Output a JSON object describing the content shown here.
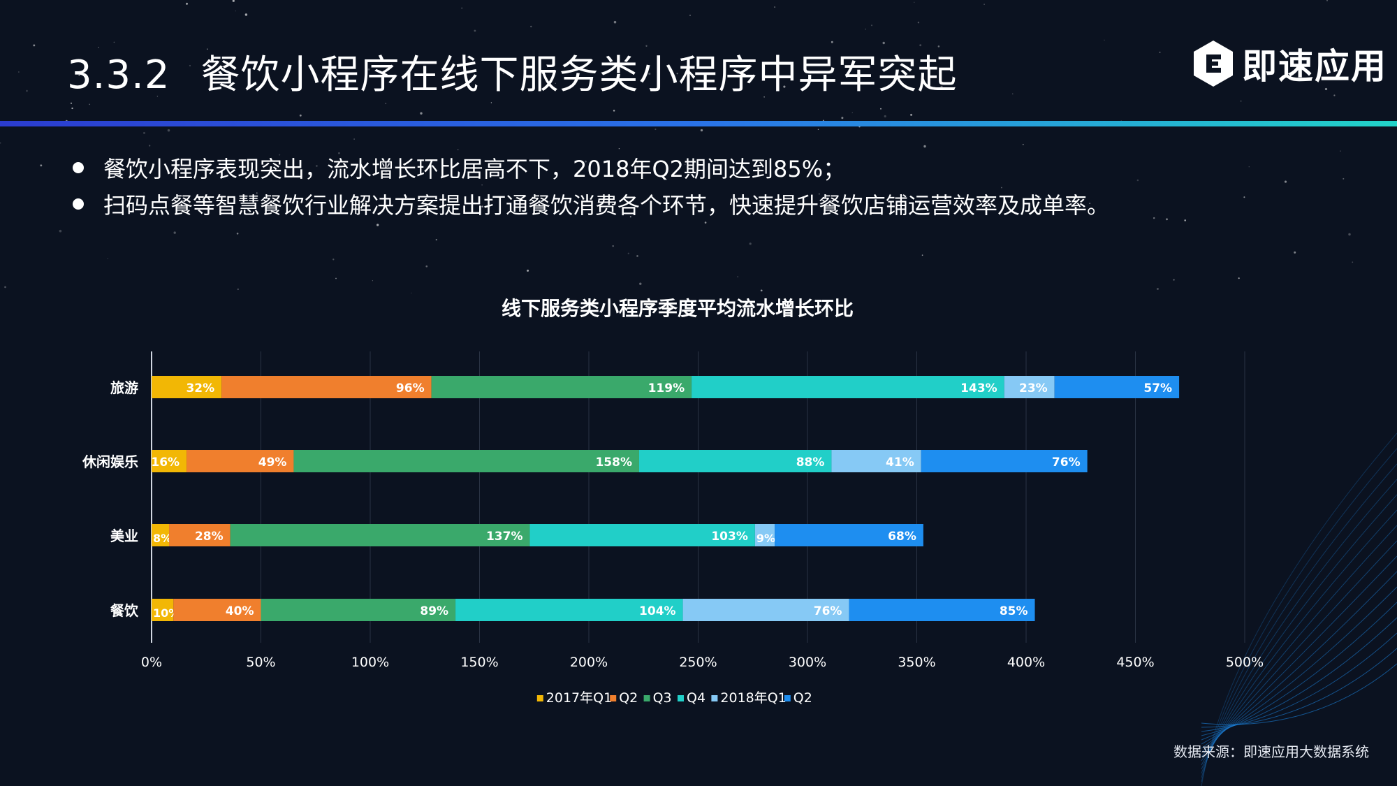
{
  "slide": {
    "section_number": "3.3.2",
    "title": "餐饮小程序在线下服务类小程序中异军突起",
    "brand": "即速应用",
    "bullets": [
      "餐饮小程序表现突出，流水增长环比居高不下，2018年Q2期间达到85%；",
      "扫码点餐等智慧餐饮行业解决方案提出打通餐饮消费各个环节，快速提升餐饮店铺运营效率及成单率。"
    ],
    "source": "数据来源：即速应用大数据系统"
  },
  "colors": {
    "background": "#0b1220",
    "series": [
      "#f2b705",
      "#f07f2d",
      "#3aa96b",
      "#21cfc8",
      "#86c9f5",
      "#1e8ef0"
    ]
  },
  "icons": {
    "brand_logo": "hexagon-e-logo-icon"
  },
  "chart_data": {
    "type": "bar",
    "orientation": "horizontal",
    "stacked": true,
    "title": "线下服务类小程序季度平均流水增长环比",
    "categories": [
      "旅游",
      "休闲娱乐",
      "美业",
      "餐饮"
    ],
    "series": [
      {
        "name": "2017年Q1",
        "values": [
          32,
          16,
          8,
          10
        ]
      },
      {
        "name": "Q2",
        "values": [
          96,
          49,
          28,
          40
        ]
      },
      {
        "name": "Q3",
        "values": [
          119,
          158,
          137,
          89
        ]
      },
      {
        "name": "Q4",
        "values": [
          143,
          88,
          103,
          104
        ]
      },
      {
        "name": "2018年Q1",
        "values": [
          23,
          41,
          9,
          76
        ]
      },
      {
        "name": "Q2",
        "values": [
          57,
          76,
          68,
          85
        ]
      }
    ],
    "value_suffix": "%",
    "xlim": [
      0,
      500
    ],
    "xticks": [
      "0%",
      "50%",
      "100%",
      "150%",
      "200%",
      "250%",
      "300%",
      "350%",
      "400%",
      "450%",
      "500%"
    ],
    "grid": "vertical",
    "legend_position": "bottom"
  }
}
